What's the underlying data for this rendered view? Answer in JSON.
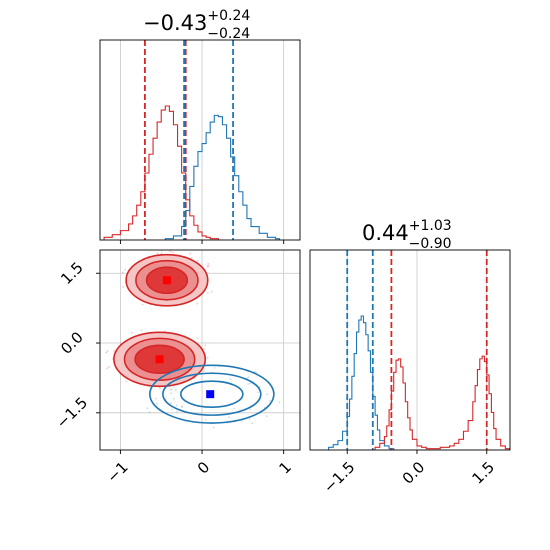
{
  "chart_data": [
    {
      "type": "histogram",
      "panel": "top-left",
      "title": {
        "main": "−0.43",
        "sup": "+0.24",
        "sub": "−0.24"
      },
      "xlim": [
        -1.25,
        1.2
      ],
      "x_ticks": [
        -1,
        0,
        1
      ],
      "show_tick_labels": false,
      "grid": true,
      "series": [
        {
          "color": "#d62728",
          "x": [
            -1.2,
            -1.1,
            -1.0,
            -0.9,
            -0.85,
            -0.8,
            -0.75,
            -0.7,
            -0.65,
            -0.6,
            -0.55,
            -0.5,
            -0.45,
            -0.4,
            -0.35,
            -0.3,
            -0.25,
            -0.2,
            -0.15,
            -0.1,
            -0.05,
            0.0,
            0.05,
            0.1,
            0.2
          ],
          "y": [
            0.02,
            0.04,
            0.07,
            0.12,
            0.18,
            0.26,
            0.36,
            0.5,
            0.64,
            0.76,
            0.88,
            0.97,
            1.0,
            0.96,
            0.86,
            0.7,
            0.5,
            0.3,
            0.18,
            0.11,
            0.06,
            0.03,
            0.02,
            0.01,
            0.0
          ],
          "quantiles": [
            -0.7,
            -0.21,
            -0.2
          ]
        },
        {
          "color": "#1f77b4",
          "x": [
            -0.45,
            -0.35,
            -0.25,
            -0.2,
            -0.15,
            -0.1,
            -0.05,
            0.0,
            0.05,
            0.1,
            0.15,
            0.2,
            0.25,
            0.3,
            0.35,
            0.4,
            0.45,
            0.5,
            0.55,
            0.6,
            0.7,
            0.8,
            0.9
          ],
          "y": [
            0.01,
            0.03,
            0.1,
            0.22,
            0.4,
            0.55,
            0.66,
            0.72,
            0.8,
            0.88,
            0.93,
            0.92,
            0.86,
            0.76,
            0.62,
            0.48,
            0.36,
            0.26,
            0.16,
            0.1,
            0.05,
            0.02,
            0.01
          ],
          "quantiles": [
            -0.22,
            0.38
          ]
        }
      ]
    },
    {
      "type": "contour",
      "panel": "bottom-left",
      "xlim": [
        -1.25,
        1.2
      ],
      "ylim": [
        -2.3,
        2.0
      ],
      "x_ticks": [
        -1,
        0,
        1
      ],
      "x_tick_labels": [
        "−1",
        "0",
        "1"
      ],
      "y_ticks": [
        1.5,
        0.0,
        -1.5
      ],
      "y_tick_labels": [
        "1.5",
        "0.0",
        "−1.5"
      ],
      "grid": true,
      "series": [
        {
          "color": "#d62728",
          "filled": true,
          "blobs": [
            {
              "cx": -0.43,
              "cy": 1.35,
              "rx": [
                0.25,
                0.38,
                0.5
              ],
              "ry": [
                0.28,
                0.42,
                0.55
              ]
            },
            {
              "cx": -0.52,
              "cy": -0.35,
              "rx": [
                0.3,
                0.43,
                0.56
              ],
              "ry": [
                0.3,
                0.45,
                0.58
              ]
            }
          ],
          "markers": [
            [
              -0.43,
              1.35
            ],
            [
              -0.52,
              -0.35
            ]
          ]
        },
        {
          "color": "#1f77b4",
          "filled": false,
          "blobs": [
            {
              "cx": 0.12,
              "cy": -1.1,
              "rx": [
                0.38,
                0.6,
                0.76
              ],
              "ry": [
                0.28,
                0.45,
                0.62
              ]
            }
          ],
          "markers": [
            [
              0.1,
              -1.1
            ]
          ]
        }
      ]
    },
    {
      "type": "histogram",
      "panel": "bottom-right",
      "title": {
        "main": "0.44",
        "sup": "+1.03",
        "sub": "−0.90"
      },
      "xlim": [
        -2.3,
        2.0
      ],
      "x_ticks": [
        -1.5,
        0.0,
        1.5
      ],
      "x_tick_labels": [
        "−1.5",
        "0.0",
        "1.5"
      ],
      "grid": true,
      "series": [
        {
          "color": "#1f77b4",
          "x": [
            -2.1,
            -1.9,
            -1.8,
            -1.7,
            -1.6,
            -1.5,
            -1.45,
            -1.4,
            -1.35,
            -1.3,
            -1.25,
            -1.2,
            -1.15,
            -1.1,
            -1.05,
            -1.0,
            -0.95,
            -0.9,
            -0.85,
            -0.8,
            -0.7,
            -0.6,
            -0.5
          ],
          "y": [
            0.0,
            0.02,
            0.04,
            0.07,
            0.14,
            0.25,
            0.38,
            0.55,
            0.72,
            0.88,
            0.97,
            1.0,
            0.95,
            0.86,
            0.74,
            0.58,
            0.4,
            0.26,
            0.15,
            0.07,
            0.03,
            0.01,
            0.0
          ],
          "quantiles": [
            -1.5,
            -0.95
          ]
        },
        {
          "color": "#d62728",
          "x": [
            -1.05,
            -0.9,
            -0.8,
            -0.7,
            -0.65,
            -0.6,
            -0.55,
            -0.5,
            -0.45,
            -0.4,
            -0.35,
            -0.3,
            -0.25,
            -0.2,
            -0.15,
            -0.1,
            0.0,
            0.1,
            0.2,
            0.3,
            0.4,
            0.5,
            0.6,
            0.7,
            0.8,
            0.9,
            1.0,
            1.1,
            1.2,
            1.25,
            1.3,
            1.35,
            1.4,
            1.45,
            1.5,
            1.55,
            1.6,
            1.65,
            1.7,
            1.8,
            1.9
          ],
          "y": [
            0.0,
            0.02,
            0.05,
            0.1,
            0.18,
            0.3,
            0.44,
            0.58,
            0.67,
            0.68,
            0.62,
            0.5,
            0.36,
            0.24,
            0.15,
            0.08,
            0.03,
            0.02,
            0.01,
            0.01,
            0.01,
            0.02,
            0.02,
            0.03,
            0.05,
            0.08,
            0.14,
            0.22,
            0.36,
            0.48,
            0.6,
            0.68,
            0.7,
            0.66,
            0.56,
            0.42,
            0.28,
            0.16,
            0.08,
            0.03,
            0.01
          ],
          "quantiles": [
            -0.55,
            1.5
          ]
        }
      ]
    }
  ]
}
